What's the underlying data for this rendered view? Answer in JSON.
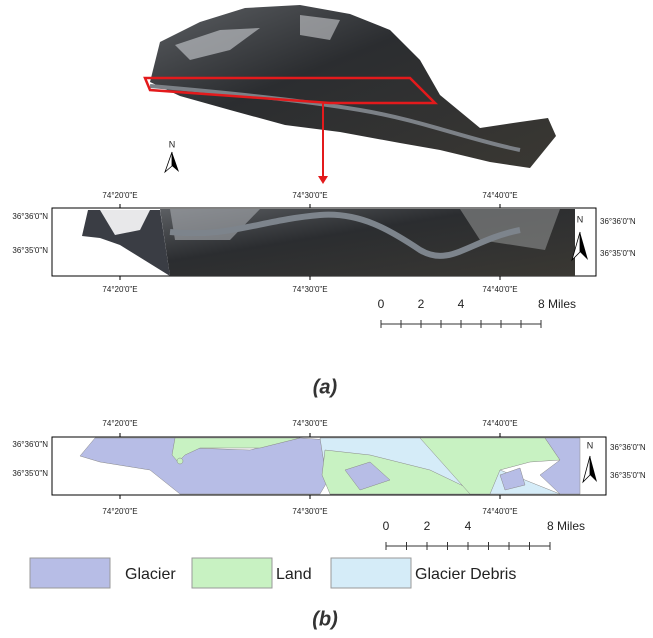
{
  "panel_a": {
    "lon_labels_top": [
      "74°20'0\"E",
      "74°30'0\"E",
      "74°40'0\"E"
    ],
    "lon_labels_bottom": [
      "74°20'0\"E",
      "74°30'0\"E",
      "74°40'0\"E"
    ],
    "lat_labels_left": [
      "36°36'0\"N",
      "36°35'0\"N"
    ],
    "lat_labels_right": [
      "36°36'0\"N",
      "36°35'0\"N"
    ],
    "north": "N",
    "scale_labels": [
      "0",
      "2",
      "4",
      "8 Miles"
    ],
    "caption": "(a)"
  },
  "panel_b": {
    "lon_labels_top": [
      "74°20'0\"E",
      "74°30'0\"E",
      "74°40'0\"E"
    ],
    "lon_labels_bottom": [
      "74°20'0\"E",
      "74°30'0\"E",
      "74°40'0\"E"
    ],
    "lat_labels_left": [
      "36°36'0\"N",
      "36°35'0\"N"
    ],
    "lat_labels_right": [
      "36°36'0\"N",
      "36°35'0\"N"
    ],
    "north": "N",
    "scale_labels": [
      "0",
      "2",
      "4",
      "8 Miles"
    ],
    "caption": "(b)"
  },
  "legend": [
    {
      "label": "Glacier",
      "color": "#b7bde6"
    },
    {
      "label": "Land",
      "color": "#c8f2c2"
    },
    {
      "label": "Glacier Debris",
      "color": "#d5ecf8"
    }
  ]
}
